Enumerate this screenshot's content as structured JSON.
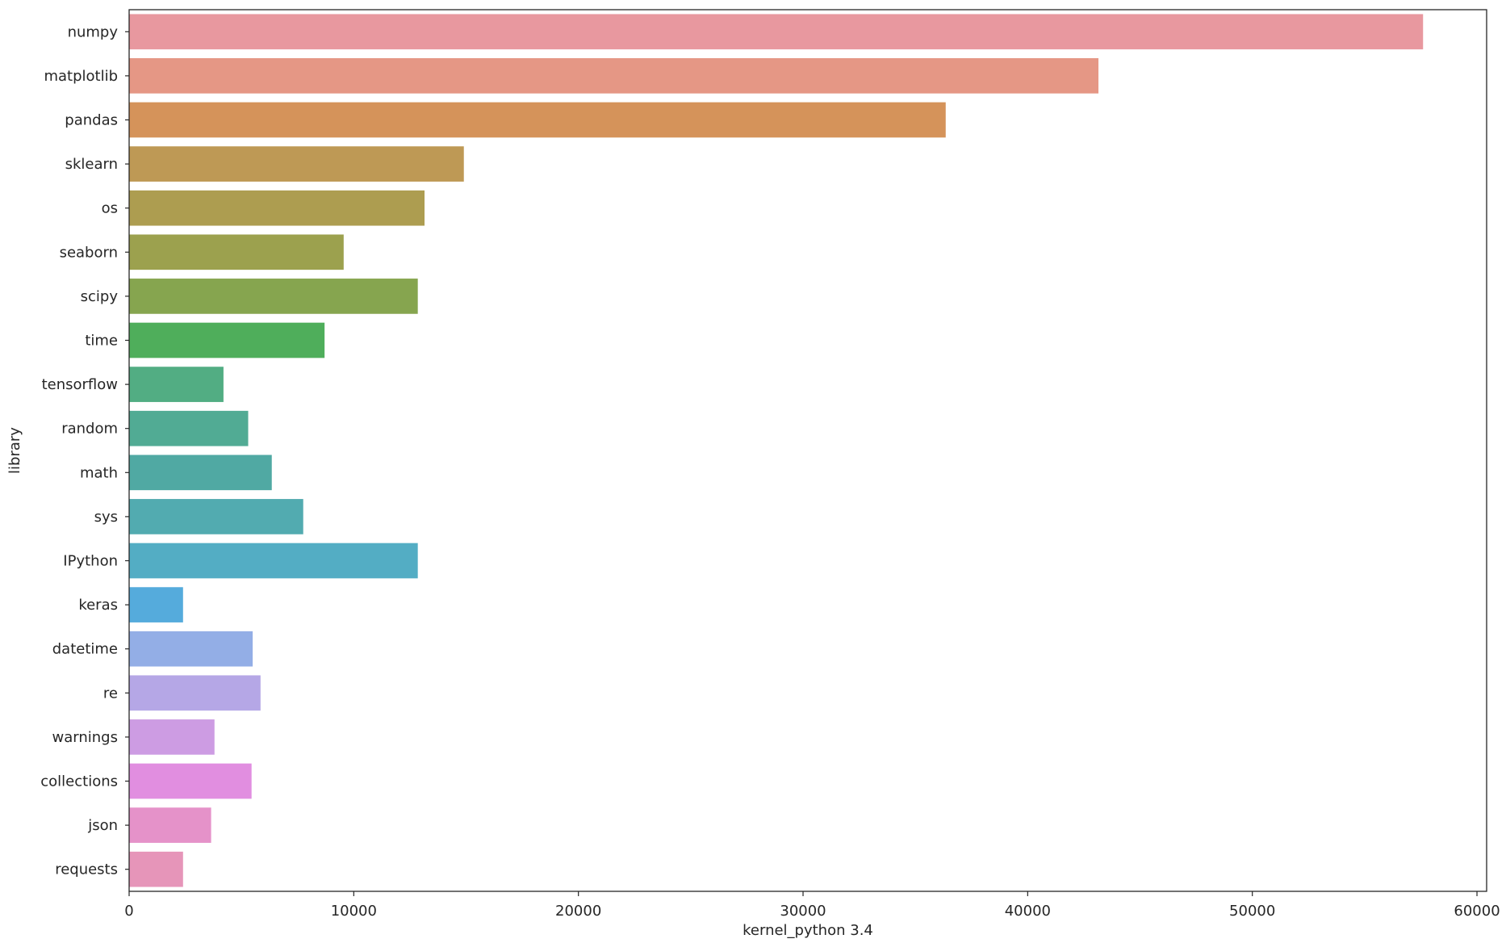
{
  "chart_data": {
    "type": "bar",
    "orientation": "horizontal",
    "title": "",
    "xlabel": "kernel_python 3.4",
    "ylabel": "library",
    "xlim": [
      0,
      60430
    ],
    "xticks": [
      0,
      10000,
      20000,
      30000,
      40000,
      50000,
      60000
    ],
    "xtick_labels": [
      "0",
      "10000",
      "20000",
      "30000",
      "40000",
      "50000",
      "60000"
    ],
    "grid": false,
    "categories": [
      "numpy",
      "matplotlib",
      "pandas",
      "sklearn",
      "os",
      "seaborn",
      "scipy",
      "time",
      "tensorflow",
      "random",
      "math",
      "sys",
      "IPython",
      "keras",
      "datetime",
      "re",
      "warnings",
      "collections",
      "json",
      "requests"
    ],
    "values": [
      57600,
      43150,
      36350,
      14900,
      13150,
      9550,
      12850,
      8700,
      4200,
      5300,
      6350,
      7750,
      12850,
      2400,
      5500,
      5850,
      3800,
      5450,
      3650,
      2400
    ],
    "colors": [
      "#e8989f",
      "#e59785",
      "#d5935a",
      "#be9955",
      "#ad9d50",
      "#9ca14e",
      "#86a54f",
      "#4fae5b",
      "#52ad83",
      "#51ab94",
      "#50a9a3",
      "#52abb0",
      "#53adc4",
      "#55abdc",
      "#93aee6",
      "#b5a7e6",
      "#cd9ce3",
      "#e18ee0",
      "#e592c9",
      "#e695b9"
    ]
  }
}
